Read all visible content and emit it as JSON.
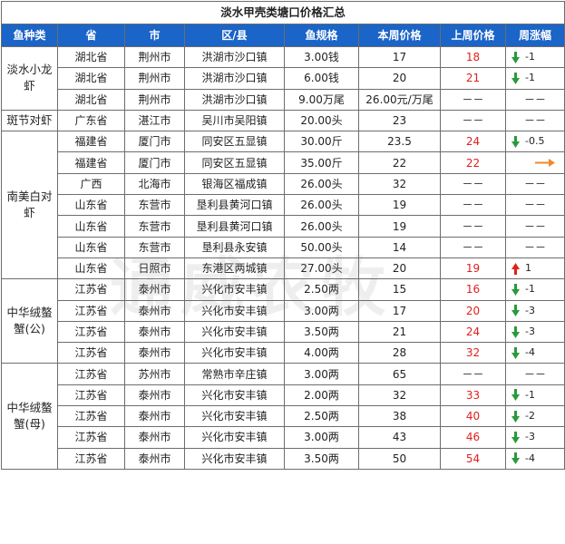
{
  "title": "淡水甲壳类塘口价格汇总",
  "headers": [
    "鱼种类",
    "省",
    "市",
    "区/县",
    "鱼规格",
    "本周价格",
    "上周价格",
    "周涨幅"
  ],
  "watermark": "通威农牧",
  "colors": {
    "header_bg": "#1b64c8",
    "up": "#e0201d",
    "down": "#2a9a3a",
    "flat": "#f08a2c"
  },
  "categories": [
    {
      "name": "淡水小龙虾",
      "rows": [
        0,
        2
      ]
    },
    {
      "name": "斑节对虾",
      "rows": [
        3,
        3
      ]
    },
    {
      "name": "南美白对虾",
      "rows": [
        4,
        10
      ]
    },
    {
      "name": "中华绒螯蟹(公)",
      "rows": [
        11,
        14
      ]
    },
    {
      "name": "中华绒螯蟹(母)",
      "rows": [
        15,
        19
      ]
    }
  ],
  "rows": [
    {
      "province": "湖北省",
      "city": "荆州市",
      "district": "洪湖市沙口镇",
      "spec": "3.00钱",
      "this_week": "17",
      "last_week": "18",
      "change": "-1",
      "trend": "down"
    },
    {
      "province": "湖北省",
      "city": "荆州市",
      "district": "洪湖市沙口镇",
      "spec": "6.00钱",
      "this_week": "20",
      "last_week": "21",
      "change": "-1",
      "trend": "down"
    },
    {
      "province": "湖北省",
      "city": "荆州市",
      "district": "洪湖市沙口镇",
      "spec": "9.00万尾",
      "this_week": "26.00元/万尾",
      "last_week": "－－",
      "change": "－－",
      "trend": "none"
    },
    {
      "province": "广东省",
      "city": "湛江市",
      "district": "吴川市吴阳镇",
      "spec": "20.00头",
      "this_week": "23",
      "last_week": "－－",
      "change": "－－",
      "trend": "none"
    },
    {
      "province": "福建省",
      "city": "厦门市",
      "district": "同安区五显镇",
      "spec": "30.00斤",
      "this_week": "23.5",
      "last_week": "24",
      "change": "-0.5",
      "trend": "down"
    },
    {
      "province": "福建省",
      "city": "厦门市",
      "district": "同安区五显镇",
      "spec": "35.00斤",
      "this_week": "22",
      "last_week": "22",
      "change": "",
      "trend": "flat"
    },
    {
      "province": "广西",
      "city": "北海市",
      "district": "银海区福成镇",
      "spec": "26.00头",
      "this_week": "32",
      "last_week": "－－",
      "change": "－－",
      "trend": "none"
    },
    {
      "province": "山东省",
      "city": "东营市",
      "district": "垦利县黄河口镇",
      "spec": "26.00头",
      "this_week": "19",
      "last_week": "－－",
      "change": "－－",
      "trend": "none"
    },
    {
      "province": "山东省",
      "city": "东营市",
      "district": "垦利县黄河口镇",
      "spec": "26.00头",
      "this_week": "19",
      "last_week": "－－",
      "change": "－－",
      "trend": "none"
    },
    {
      "province": "山东省",
      "city": "东营市",
      "district": "垦利县永安镇",
      "spec": "50.00头",
      "this_week": "14",
      "last_week": "－－",
      "change": "－－",
      "trend": "none"
    },
    {
      "province": "山东省",
      "city": "日照市",
      "district": "东港区两城镇",
      "spec": "27.00头",
      "this_week": "20",
      "last_week": "19",
      "change": "1",
      "trend": "up"
    },
    {
      "province": "江苏省",
      "city": "泰州市",
      "district": "兴化市安丰镇",
      "spec": "2.50两",
      "this_week": "15",
      "last_week": "16",
      "change": "-1",
      "trend": "down"
    },
    {
      "province": "江苏省",
      "city": "泰州市",
      "district": "兴化市安丰镇",
      "spec": "3.00两",
      "this_week": "17",
      "last_week": "20",
      "change": "-3",
      "trend": "down"
    },
    {
      "province": "江苏省",
      "city": "泰州市",
      "district": "兴化市安丰镇",
      "spec": "3.50两",
      "this_week": "21",
      "last_week": "24",
      "change": "-3",
      "trend": "down"
    },
    {
      "province": "江苏省",
      "city": "泰州市",
      "district": "兴化市安丰镇",
      "spec": "4.00两",
      "this_week": "28",
      "last_week": "32",
      "change": "-4",
      "trend": "down"
    },
    {
      "province": "江苏省",
      "city": "苏州市",
      "district": "常熟市辛庄镇",
      "spec": "3.00两",
      "this_week": "65",
      "last_week": "－－",
      "change": "－－",
      "trend": "none"
    },
    {
      "province": "江苏省",
      "city": "泰州市",
      "district": "兴化市安丰镇",
      "spec": "2.00两",
      "this_week": "32",
      "last_week": "33",
      "change": "-1",
      "trend": "down"
    },
    {
      "province": "江苏省",
      "city": "泰州市",
      "district": "兴化市安丰镇",
      "spec": "2.50两",
      "this_week": "38",
      "last_week": "40",
      "change": "-2",
      "trend": "down"
    },
    {
      "province": "江苏省",
      "city": "泰州市",
      "district": "兴化市安丰镇",
      "spec": "3.00两",
      "this_week": "43",
      "last_week": "46",
      "change": "-3",
      "trend": "down"
    },
    {
      "province": "江苏省",
      "city": "泰州市",
      "district": "兴化市安丰镇",
      "spec": "3.50两",
      "this_week": "50",
      "last_week": "54",
      "change": "-4",
      "trend": "down"
    }
  ]
}
